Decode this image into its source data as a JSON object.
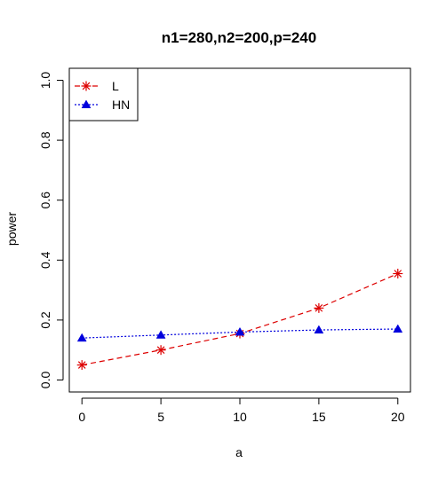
{
  "chart_data": {
    "type": "line",
    "title": "n1=280,n2=200,p=240",
    "xlabel": "a",
    "ylabel": "power",
    "x": [
      0,
      5,
      10,
      15,
      20
    ],
    "xlim": [
      -0.8,
      20.8
    ],
    "ylim": [
      -0.04,
      1.04
    ],
    "xticks": [
      0,
      5,
      10,
      15,
      20
    ],
    "yticks": [
      0.0,
      0.2,
      0.4,
      0.6,
      0.8,
      1.0
    ],
    "xtick_labels": [
      "0",
      "5",
      "10",
      "15",
      "20"
    ],
    "ytick_labels": [
      "0.0",
      "0.2",
      "0.4",
      "0.6",
      "0.8",
      "1.0"
    ],
    "grid": false,
    "legend_position": "top-left",
    "series": [
      {
        "name": "L",
        "values": [
          0.05,
          0.1,
          0.155,
          0.24,
          0.355
        ],
        "color": "#dd0000",
        "marker": "asterisk",
        "line_style": "dashed"
      },
      {
        "name": "HN",
        "values": [
          0.14,
          0.15,
          0.16,
          0.167,
          0.17
        ],
        "color": "#0000dd",
        "marker": "triangle",
        "line_style": "dotted"
      }
    ]
  }
}
